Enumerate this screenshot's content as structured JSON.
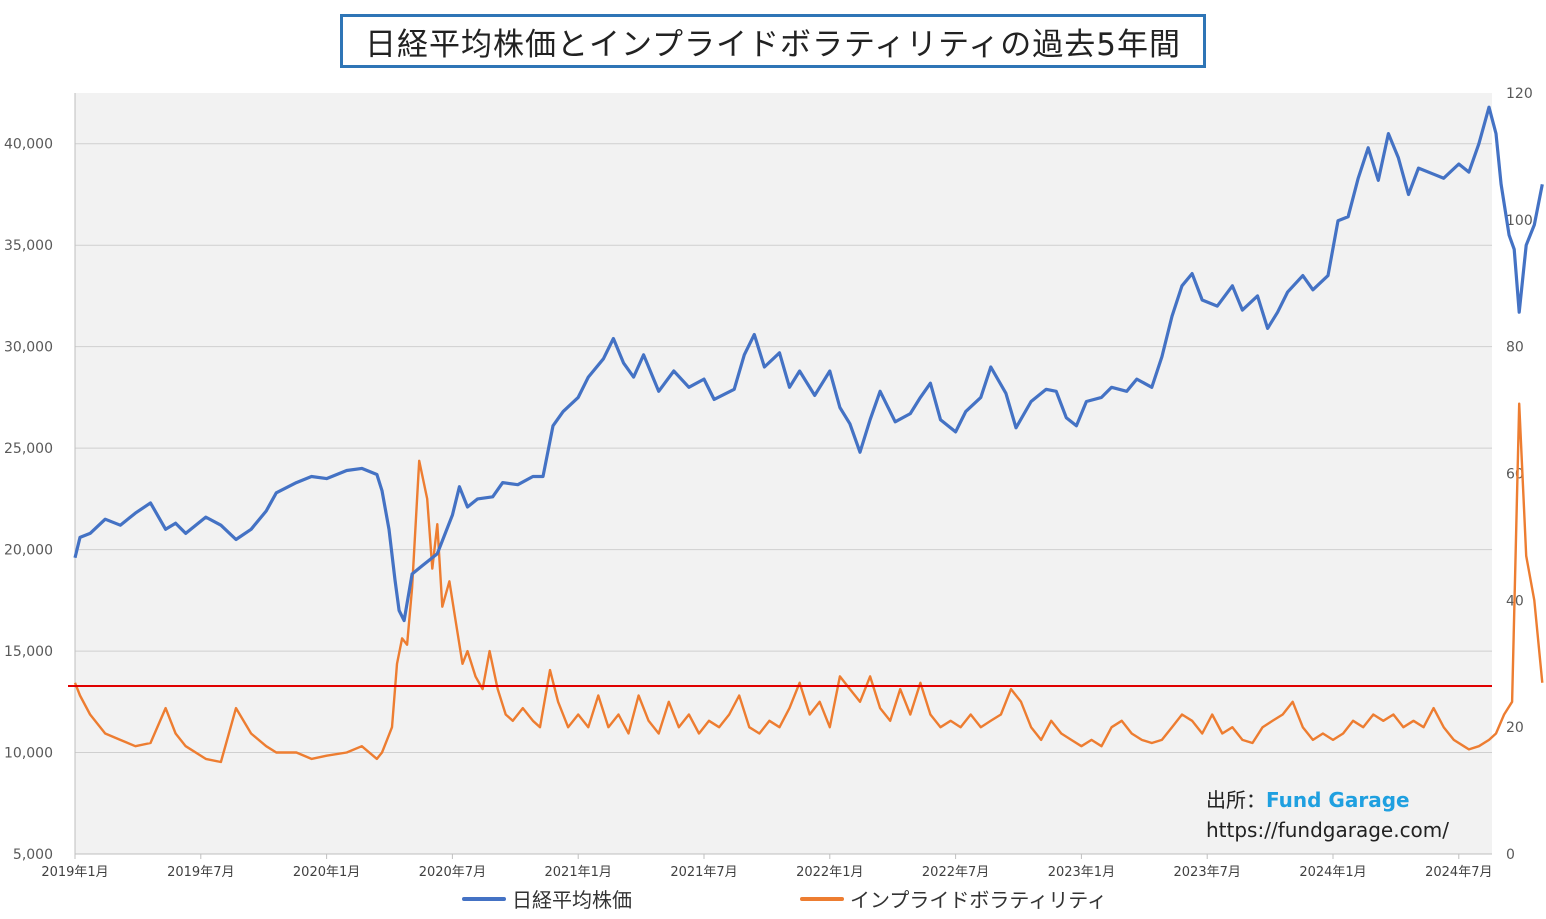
{
  "title": "日経平均株価とインプライドボラティリティの過去5年間",
  "source": {
    "label": "出所：",
    "brand": "Fund Garage",
    "url": "https://fundgarage.com/"
  },
  "legend": [
    {
      "name": "日経平均株価",
      "color": "#4472c4"
    },
    {
      "name": "インプライドボラティリティ",
      "color": "#ed7d31"
    }
  ],
  "chart_data": {
    "type": "line",
    "x_labels": [
      "2019年1月",
      "2019年7月",
      "2020年1月",
      "2020年7月",
      "2021年1月",
      "2021年7月",
      "2022年1月",
      "2022年7月",
      "2023年1月",
      "2023年7月",
      "2024年1月",
      "2024年7月"
    ],
    "y_left": {
      "min": 5000,
      "max": 42500,
      "ticks": [
        5000,
        10000,
        15000,
        20000,
        25000,
        30000,
        35000,
        40000
      ],
      "tick_labels": [
        "5,000",
        "10,000",
        "15,000",
        "20,000",
        "25,000",
        "30,000",
        "35,000",
        "40,000"
      ]
    },
    "y_right": {
      "min": 0,
      "max": 120,
      "ticks": [
        0,
        20,
        40,
        60,
        80,
        100,
        120
      ],
      "tick_labels": [
        "0",
        "20",
        "40",
        "60",
        "80",
        "100",
        "120"
      ]
    },
    "reference_line": {
      "axis": "right",
      "value": 26.5,
      "color": "#e00000"
    },
    "series": [
      {
        "name": "日経平均株価",
        "axis": "left",
        "color": "#4472c4",
        "points": [
          [
            0,
            19600
          ],
          [
            0.05,
            20600
          ],
          [
            0.15,
            20800
          ],
          [
            0.3,
            21500
          ],
          [
            0.45,
            21200
          ],
          [
            0.6,
            21800
          ],
          [
            0.75,
            22300
          ],
          [
            0.9,
            21000
          ],
          [
            1.0,
            21300
          ],
          [
            1.1,
            20800
          ],
          [
            1.3,
            21600
          ],
          [
            1.45,
            21200
          ],
          [
            1.6,
            20500
          ],
          [
            1.75,
            21000
          ],
          [
            1.9,
            21900
          ],
          [
            2.0,
            22800
          ],
          [
            2.2,
            23300
          ],
          [
            2.35,
            23600
          ],
          [
            2.5,
            23500
          ],
          [
            2.7,
            23900
          ],
          [
            2.85,
            24000
          ],
          [
            3.0,
            23700
          ],
          [
            3.05,
            22900
          ],
          [
            3.12,
            21000
          ],
          [
            3.18,
            18500
          ],
          [
            3.22,
            17000
          ],
          [
            3.27,
            16500
          ],
          [
            3.35,
            18800
          ],
          [
            3.45,
            19200
          ],
          [
            3.6,
            19800
          ],
          [
            3.75,
            21700
          ],
          [
            3.82,
            23100
          ],
          [
            3.9,
            22100
          ],
          [
            4.0,
            22500
          ],
          [
            4.15,
            22600
          ],
          [
            4.25,
            23300
          ],
          [
            4.4,
            23200
          ],
          [
            4.55,
            23600
          ],
          [
            4.65,
            23600
          ],
          [
            4.75,
            26100
          ],
          [
            4.85,
            26800
          ],
          [
            5.0,
            27500
          ],
          [
            5.1,
            28500
          ],
          [
            5.25,
            29400
          ],
          [
            5.35,
            30400
          ],
          [
            5.45,
            29200
          ],
          [
            5.55,
            28500
          ],
          [
            5.65,
            29600
          ],
          [
            5.8,
            27800
          ],
          [
            5.95,
            28800
          ],
          [
            6.1,
            28000
          ],
          [
            6.25,
            28400
          ],
          [
            6.35,
            27400
          ],
          [
            6.55,
            27900
          ],
          [
            6.65,
            29600
          ],
          [
            6.75,
            30600
          ],
          [
            6.85,
            29000
          ],
          [
            7.0,
            29700
          ],
          [
            7.1,
            28000
          ],
          [
            7.2,
            28800
          ],
          [
            7.35,
            27600
          ],
          [
            7.5,
            28800
          ],
          [
            7.6,
            27000
          ],
          [
            7.7,
            26200
          ],
          [
            7.8,
            24800
          ],
          [
            7.9,
            26400
          ],
          [
            8.0,
            27800
          ],
          [
            8.15,
            26300
          ],
          [
            8.3,
            26700
          ],
          [
            8.4,
            27500
          ],
          [
            8.5,
            28200
          ],
          [
            8.6,
            26400
          ],
          [
            8.75,
            25800
          ],
          [
            8.85,
            26800
          ],
          [
            9.0,
            27500
          ],
          [
            9.1,
            29000
          ],
          [
            9.25,
            27700
          ],
          [
            9.35,
            26000
          ],
          [
            9.5,
            27300
          ],
          [
            9.65,
            27900
          ],
          [
            9.75,
            27800
          ],
          [
            9.85,
            26500
          ],
          [
            9.95,
            26100
          ],
          [
            10.05,
            27300
          ],
          [
            10.2,
            27500
          ],
          [
            10.3,
            28000
          ],
          [
            10.45,
            27800
          ],
          [
            10.55,
            28400
          ],
          [
            10.7,
            28000
          ],
          [
            10.8,
            29500
          ],
          [
            10.9,
            31500
          ],
          [
            11.0,
            33000
          ],
          [
            11.1,
            33600
          ],
          [
            11.2,
            32300
          ],
          [
            11.35,
            32000
          ],
          [
            11.5,
            33000
          ],
          [
            11.6,
            31800
          ],
          [
            11.75,
            32500
          ],
          [
            11.85,
            30900
          ],
          [
            11.95,
            31700
          ],
          [
            12.05,
            32700
          ],
          [
            12.2,
            33500
          ],
          [
            12.3,
            32800
          ],
          [
            12.45,
            33500
          ],
          [
            12.55,
            36200
          ],
          [
            12.65,
            36400
          ],
          [
            12.75,
            38300
          ],
          [
            12.85,
            39800
          ],
          [
            12.95,
            38200
          ],
          [
            13.05,
            40500
          ],
          [
            13.15,
            39300
          ],
          [
            13.25,
            37500
          ],
          [
            13.35,
            38800
          ],
          [
            13.5,
            38500
          ],
          [
            13.6,
            38300
          ],
          [
            13.75,
            39000
          ],
          [
            13.85,
            38600
          ],
          [
            13.95,
            40000
          ],
          [
            14.05,
            41800
          ],
          [
            14.12,
            40500
          ],
          [
            14.17,
            38000
          ],
          [
            14.25,
            35500
          ],
          [
            14.3,
            34800
          ],
          [
            14.35,
            31700
          ],
          [
            14.42,
            35000
          ],
          [
            14.5,
            36000
          ],
          [
            14.58,
            38000
          ]
        ]
      },
      {
        "name": "インプライドボラティリティ",
        "axis": "right",
        "color": "#ed7d31",
        "points": [
          [
            0,
            27
          ],
          [
            0.05,
            25
          ],
          [
            0.15,
            22
          ],
          [
            0.3,
            19
          ],
          [
            0.45,
            18
          ],
          [
            0.6,
            17
          ],
          [
            0.75,
            17.5
          ],
          [
            0.9,
            23
          ],
          [
            1.0,
            19
          ],
          [
            1.1,
            17
          ],
          [
            1.3,
            15
          ],
          [
            1.45,
            14.5
          ],
          [
            1.6,
            23
          ],
          [
            1.75,
            19
          ],
          [
            1.9,
            17
          ],
          [
            2.0,
            16
          ],
          [
            2.2,
            16
          ],
          [
            2.35,
            15
          ],
          [
            2.5,
            15.5
          ],
          [
            2.7,
            16
          ],
          [
            2.85,
            17
          ],
          [
            3.0,
            15
          ],
          [
            3.05,
            16
          ],
          [
            3.1,
            18
          ],
          [
            3.15,
            20
          ],
          [
            3.2,
            30
          ],
          [
            3.25,
            34
          ],
          [
            3.3,
            33
          ],
          [
            3.35,
            42
          ],
          [
            3.42,
            62
          ],
          [
            3.5,
            56
          ],
          [
            3.55,
            45
          ],
          [
            3.6,
            52
          ],
          [
            3.65,
            39
          ],
          [
            3.72,
            43
          ],
          [
            3.78,
            37
          ],
          [
            3.85,
            30
          ],
          [
            3.9,
            32
          ],
          [
            3.98,
            28
          ],
          [
            4.05,
            26
          ],
          [
            4.12,
            32
          ],
          [
            4.2,
            26
          ],
          [
            4.28,
            22
          ],
          [
            4.35,
            21
          ],
          [
            4.45,
            23
          ],
          [
            4.55,
            21
          ],
          [
            4.62,
            20
          ],
          [
            4.72,
            29
          ],
          [
            4.8,
            24
          ],
          [
            4.9,
            20
          ],
          [
            5.0,
            22
          ],
          [
            5.1,
            20
          ],
          [
            5.2,
            25
          ],
          [
            5.3,
            20
          ],
          [
            5.4,
            22
          ],
          [
            5.5,
            19
          ],
          [
            5.6,
            25
          ],
          [
            5.7,
            21
          ],
          [
            5.8,
            19
          ],
          [
            5.9,
            24
          ],
          [
            6.0,
            20
          ],
          [
            6.1,
            22
          ],
          [
            6.2,
            19
          ],
          [
            6.3,
            21
          ],
          [
            6.4,
            20
          ],
          [
            6.5,
            22
          ],
          [
            6.6,
            25
          ],
          [
            6.7,
            20
          ],
          [
            6.8,
            19
          ],
          [
            6.9,
            21
          ],
          [
            7.0,
            20
          ],
          [
            7.1,
            23
          ],
          [
            7.2,
            27
          ],
          [
            7.3,
            22
          ],
          [
            7.4,
            24
          ],
          [
            7.5,
            20
          ],
          [
            7.6,
            28
          ],
          [
            7.7,
            26
          ],
          [
            7.8,
            24
          ],
          [
            7.9,
            28
          ],
          [
            8.0,
            23
          ],
          [
            8.1,
            21
          ],
          [
            8.2,
            26
          ],
          [
            8.3,
            22
          ],
          [
            8.4,
            27
          ],
          [
            8.5,
            22
          ],
          [
            8.6,
            20
          ],
          [
            8.7,
            21
          ],
          [
            8.8,
            20
          ],
          [
            8.9,
            22
          ],
          [
            9.0,
            20
          ],
          [
            9.1,
            21
          ],
          [
            9.2,
            22
          ],
          [
            9.3,
            26
          ],
          [
            9.4,
            24
          ],
          [
            9.5,
            20
          ],
          [
            9.6,
            18
          ],
          [
            9.7,
            21
          ],
          [
            9.8,
            19
          ],
          [
            9.9,
            18
          ],
          [
            10.0,
            17
          ],
          [
            10.1,
            18
          ],
          [
            10.2,
            17
          ],
          [
            10.3,
            20
          ],
          [
            10.4,
            21
          ],
          [
            10.5,
            19
          ],
          [
            10.6,
            18
          ],
          [
            10.7,
            17.5
          ],
          [
            10.8,
            18
          ],
          [
            10.9,
            20
          ],
          [
            11.0,
            22
          ],
          [
            11.1,
            21
          ],
          [
            11.2,
            19
          ],
          [
            11.3,
            22
          ],
          [
            11.4,
            19
          ],
          [
            11.5,
            20
          ],
          [
            11.6,
            18
          ],
          [
            11.7,
            17.5
          ],
          [
            11.8,
            20
          ],
          [
            11.9,
            21
          ],
          [
            12.0,
            22
          ],
          [
            12.1,
            24
          ],
          [
            12.2,
            20
          ],
          [
            12.3,
            18
          ],
          [
            12.4,
            19
          ],
          [
            12.5,
            18
          ],
          [
            12.6,
            19
          ],
          [
            12.7,
            21
          ],
          [
            12.8,
            20
          ],
          [
            12.9,
            22
          ],
          [
            13.0,
            21
          ],
          [
            13.1,
            22
          ],
          [
            13.2,
            20
          ],
          [
            13.3,
            21
          ],
          [
            13.4,
            20
          ],
          [
            13.5,
            23
          ],
          [
            13.6,
            20
          ],
          [
            13.7,
            18
          ],
          [
            13.8,
            17
          ],
          [
            13.85,
            16.5
          ],
          [
            13.95,
            17
          ],
          [
            14.05,
            18
          ],
          [
            14.12,
            19
          ],
          [
            14.2,
            22
          ],
          [
            14.28,
            24
          ],
          [
            14.35,
            71
          ],
          [
            14.42,
            47
          ],
          [
            14.5,
            40
          ],
          [
            14.58,
            27
          ]
        ]
      }
    ]
  }
}
